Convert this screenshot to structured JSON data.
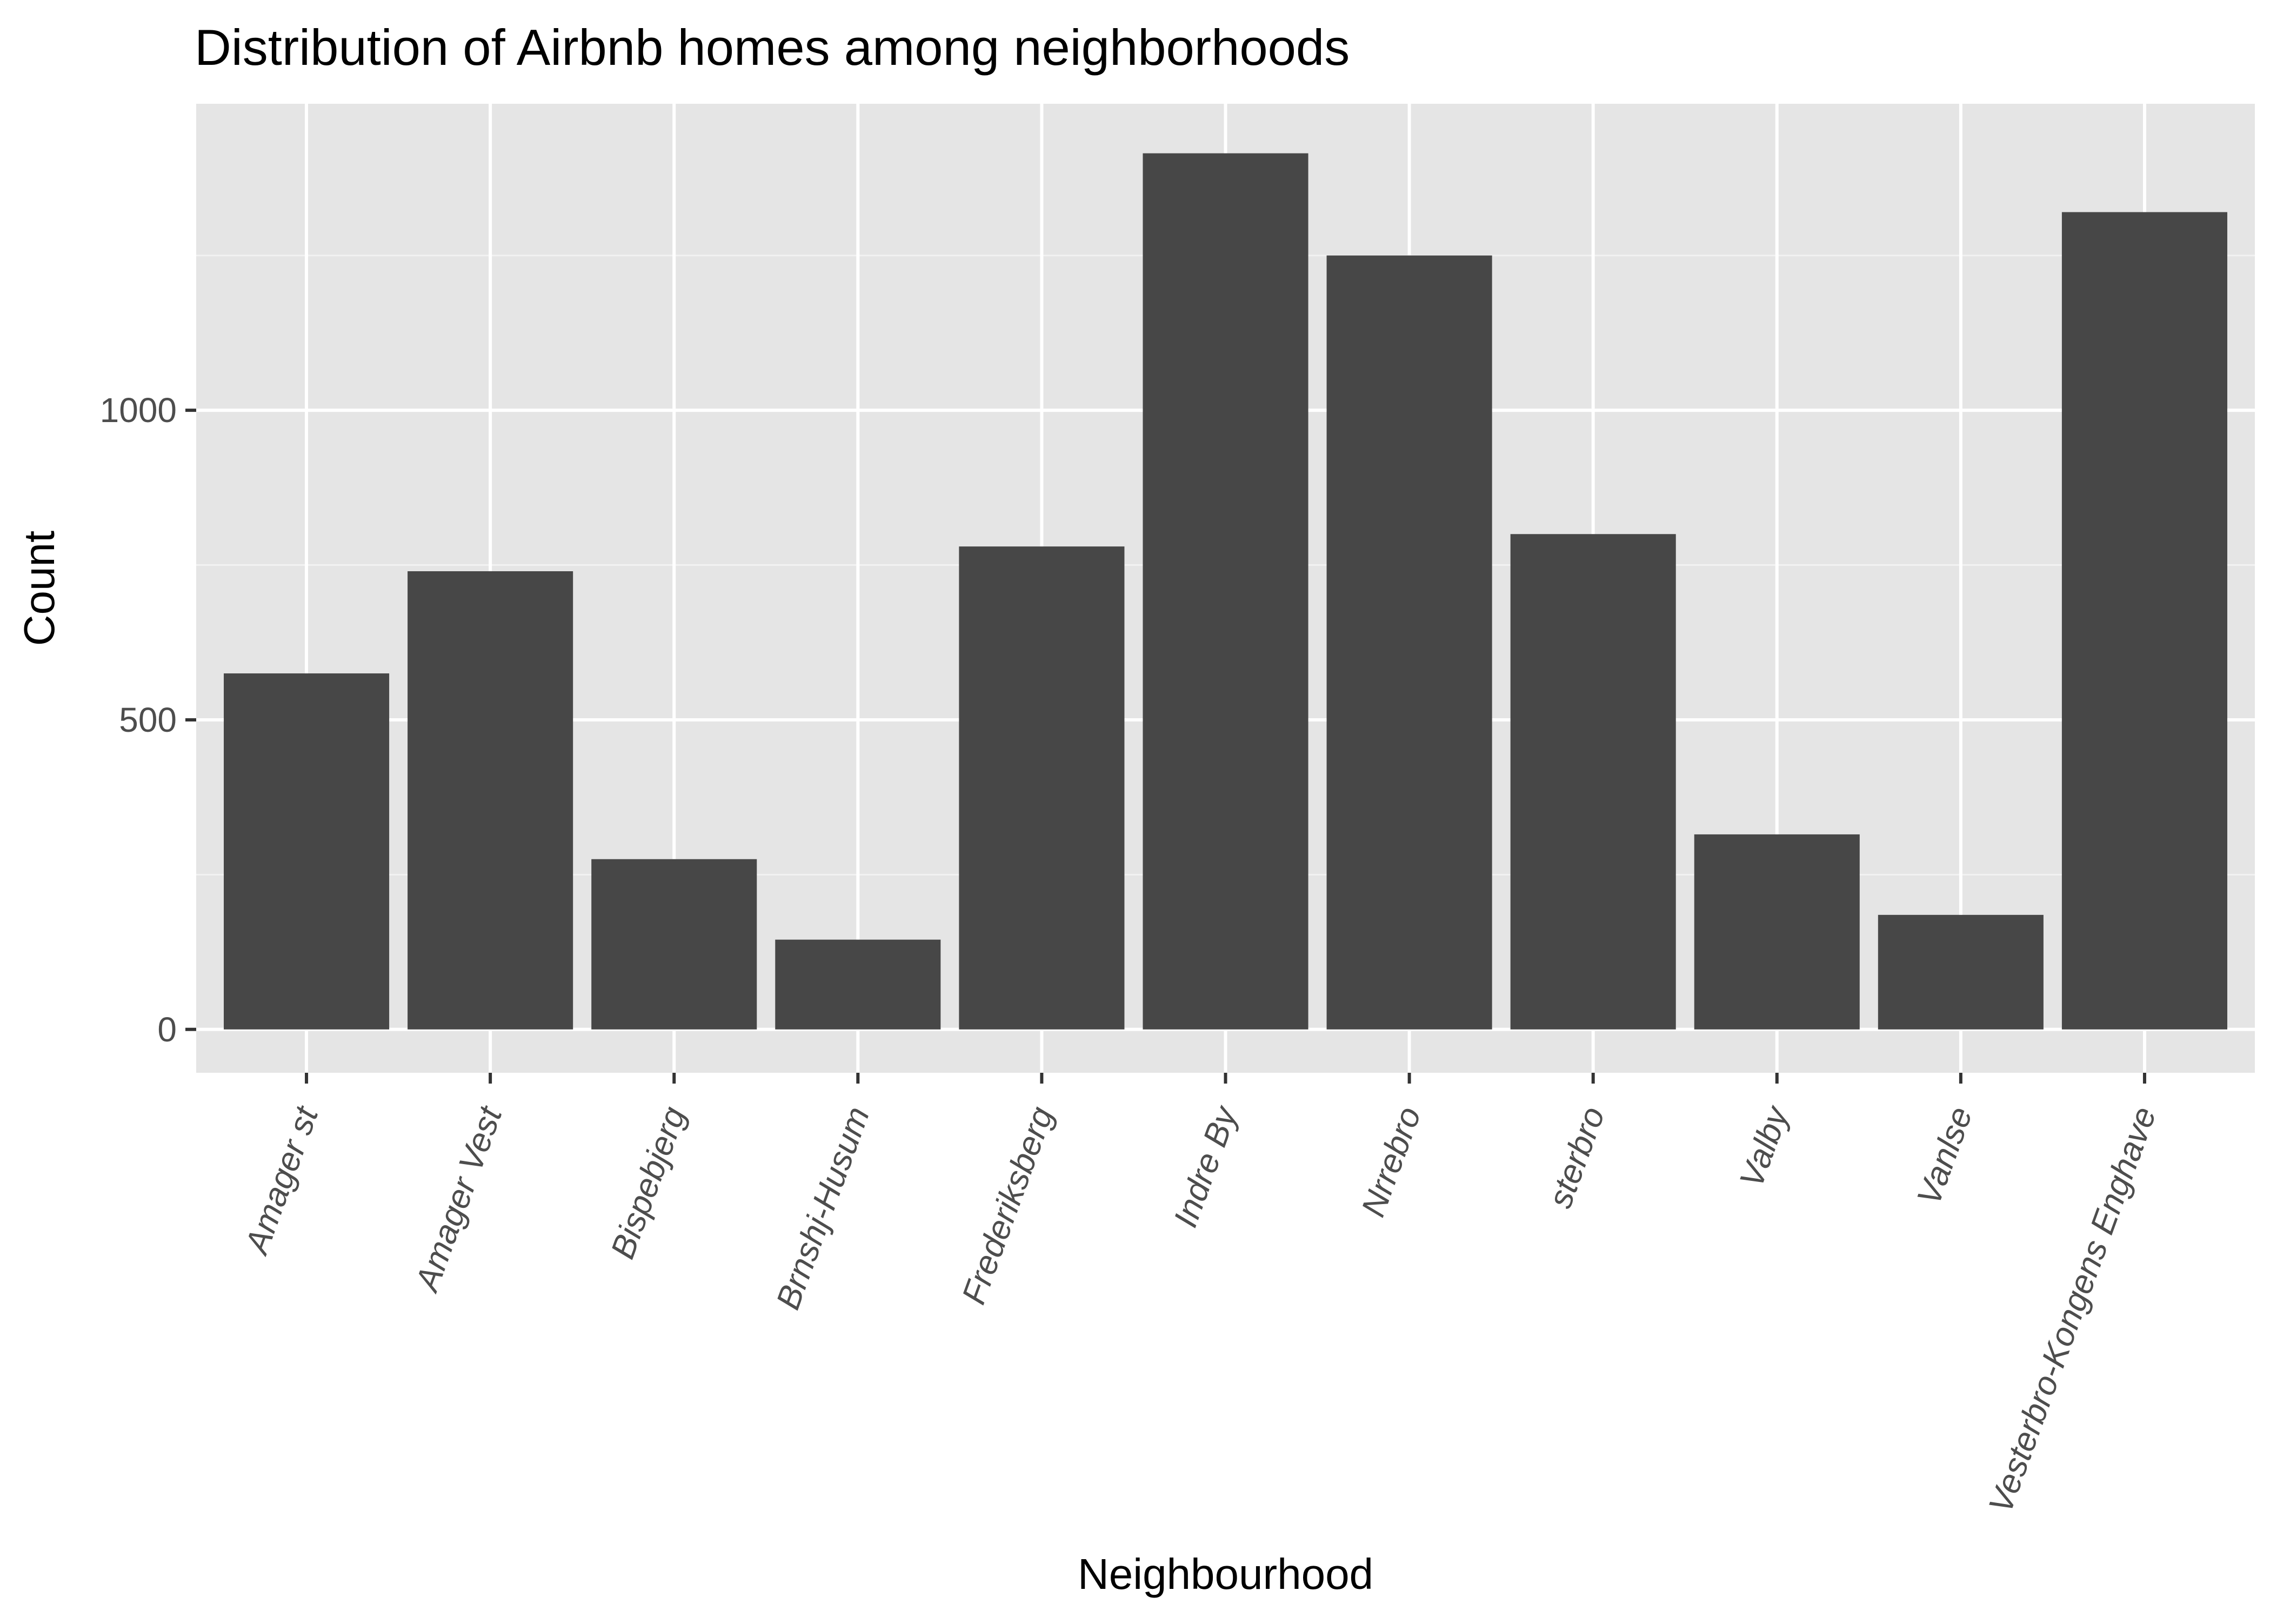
{
  "chart_data": {
    "type": "bar",
    "title": "Distribution of Airbnb homes among neighborhoods",
    "xlabel": "Neighbourhood",
    "ylabel": "Count",
    "categories": [
      "Amager st",
      "Amager Vest",
      "Bispebjerg",
      "Brnshj-Husum",
      "Frederiksberg",
      "Indre By",
      "Nrrebro",
      "sterbro",
      "Valby",
      "Vanlse",
      "Vesterbro-Kongens Enghave"
    ],
    "values": [
      575,
      740,
      275,
      145,
      780,
      1415,
      1250,
      800,
      315,
      185,
      1320
    ],
    "y_ticks": [
      0,
      500,
      1000
    ],
    "ylim": [
      -70,
      1495
    ],
    "grid": true,
    "legend": "none",
    "colors": {
      "bar": "#474747",
      "panel_background": "#e5e5e5",
      "grid_major": "#ffffff",
      "grid_minor": "#f2f2f2",
      "tick_label": "#4d4d4d",
      "tick_mark": "#333333"
    }
  }
}
